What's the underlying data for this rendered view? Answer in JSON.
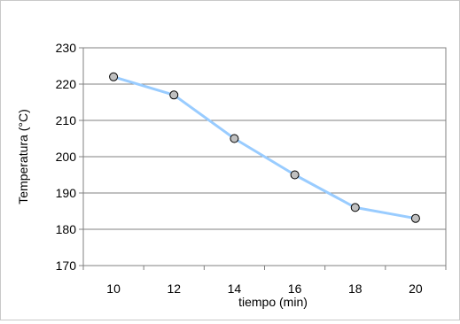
{
  "chart_data": {
    "type": "line",
    "title": "",
    "xlabel": "tiempo (min)",
    "ylabel": "Temperatura (°C)",
    "x": [
      10,
      12,
      14,
      16,
      18,
      20
    ],
    "series": [
      {
        "values": [
          222,
          217,
          205,
          195,
          186,
          183
        ],
        "color": "#99ccff",
        "marker_fill": "#c0c0c0",
        "marker_edge": "#000000"
      }
    ],
    "x_ticks": [
      "10",
      "12",
      "14",
      "16",
      "18",
      "20"
    ],
    "y_ticks": [
      "170",
      "180",
      "190",
      "200",
      "210",
      "220",
      "230"
    ],
    "xlim": [
      9,
      21
    ],
    "ylim": [
      170,
      230
    ],
    "grid": "horizontal",
    "legend": "none"
  }
}
